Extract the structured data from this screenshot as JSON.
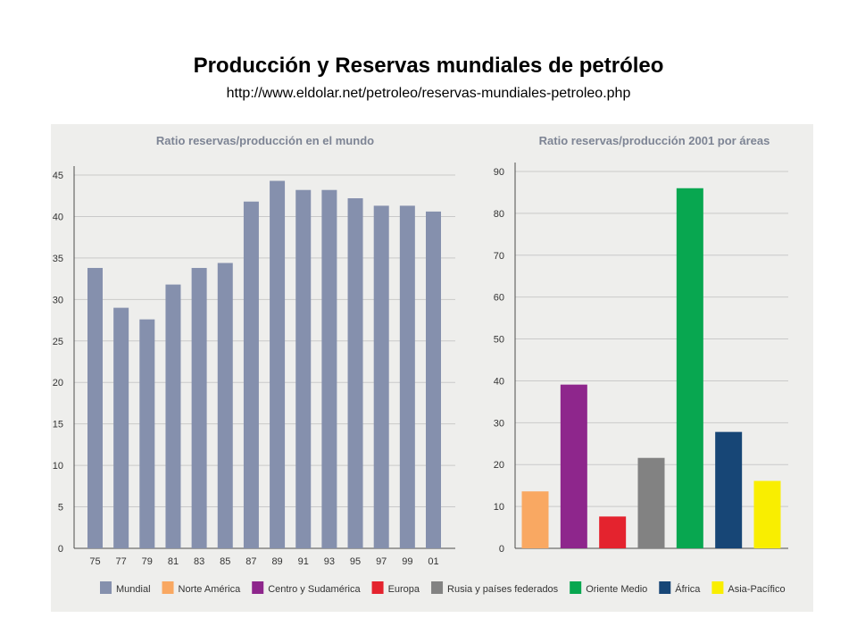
{
  "slide": {
    "title": "Producción y Reservas mundiales de petróleo",
    "subtitle": "http://www.eldolar.net/petroleo/reservas-mundiales-petroleo.php"
  },
  "chart_data": [
    {
      "type": "bar",
      "title": "Ratio reservas/producción en el mundo",
      "categories": [
        "75",
        "77",
        "79",
        "81",
        "83",
        "85",
        "87",
        "89",
        "91",
        "93",
        "95",
        "97",
        "99",
        "01"
      ],
      "values": [
        33.8,
        29,
        27.6,
        31.8,
        33.8,
        34.4,
        41.8,
        44.3,
        43.2,
        43.2,
        42.2,
        41.3,
        41.3,
        40.6
      ],
      "ylim": [
        0,
        45
      ],
      "yticks": [
        0,
        5,
        10,
        15,
        20,
        25,
        30,
        35,
        40,
        45
      ],
      "grid": true,
      "colors": [
        "#8590ad"
      ],
      "xlabel": "",
      "ylabel": ""
    },
    {
      "type": "bar",
      "title": "Ratio reservas/producción 2001 por áreas",
      "categories": [
        "Norte América",
        "Centro y Sudamérica",
        "Europa",
        "Rusia y países federados",
        "Oriente Medio",
        "África",
        "Asia-Pacífico"
      ],
      "values": [
        13.6,
        39.1,
        7.6,
        21.6,
        86,
        27.8,
        16.1
      ],
      "ylim": [
        0,
        90
      ],
      "yticks": [
        0,
        10,
        20,
        30,
        40,
        50,
        60,
        70,
        80,
        90
      ],
      "grid": true,
      "colors": [
        "#f9a862",
        "#8e268c",
        "#e4232e",
        "#828282",
        "#08a750",
        "#174676",
        "#f9ee00"
      ],
      "xlabel": "",
      "ylabel": ""
    }
  ],
  "legend": {
    "placement": "bottom",
    "items": [
      {
        "label": "Mundial",
        "color": "#8590ad"
      },
      {
        "label": "Norte América",
        "color": "#f9a862"
      },
      {
        "label": "Centro y Sudamérica",
        "color": "#8e268c"
      },
      {
        "label": "Europa",
        "color": "#e4232e"
      },
      {
        "label": "Rusia y países federados",
        "color": "#828282"
      },
      {
        "label": "Oriente Medio",
        "color": "#08a750"
      },
      {
        "label": "África",
        "color": "#174676"
      },
      {
        "label": "Asia-Pacífico",
        "color": "#f9ee00"
      }
    ]
  },
  "theme": {
    "panel_bg": "#eeeeec",
    "title_color": "#7d8494",
    "grid_color": "#c9c9c9",
    "axis_color": "#4d4d4d",
    "tick_color": "#333333"
  }
}
